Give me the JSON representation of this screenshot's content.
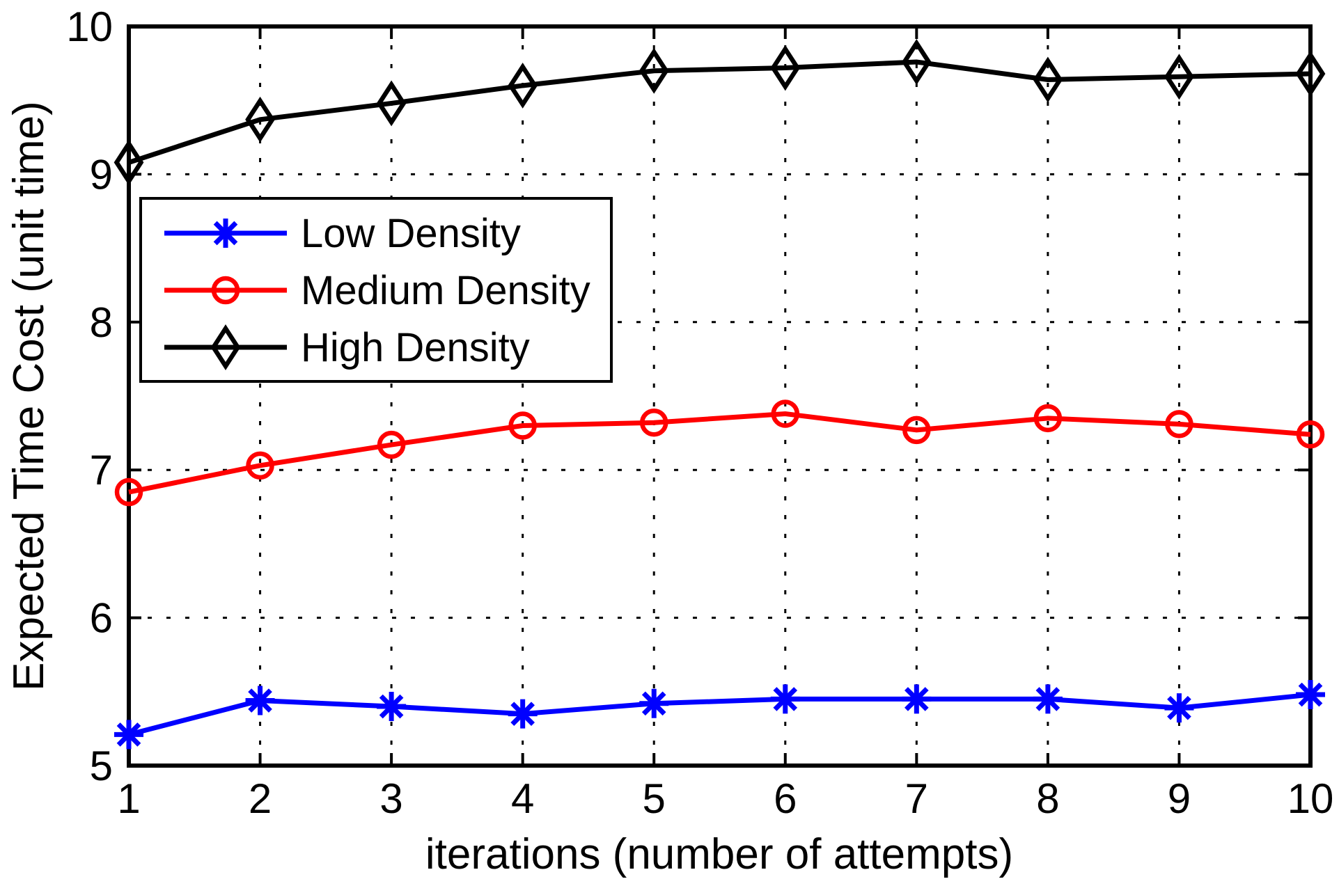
{
  "chart_data": {
    "type": "line",
    "title": "",
    "xlabel": "iterations (number of attempts)",
    "ylabel": "Expected Time Cost (unit time)",
    "x": [
      1,
      2,
      3,
      4,
      5,
      6,
      7,
      8,
      9,
      10
    ],
    "xlim": [
      1,
      10
    ],
    "ylim": [
      5,
      10
    ],
    "x_ticks": [
      1,
      2,
      3,
      4,
      5,
      6,
      7,
      8,
      9,
      10
    ],
    "y_ticks": [
      5,
      6,
      7,
      8,
      9,
      10
    ],
    "grid": "dotted",
    "legend_position": "upper-left",
    "background_color": "#ffffff",
    "axis_color": "#000000",
    "series": [
      {
        "name": "Low Density",
        "color": "#0000ff",
        "marker": "asterisk",
        "values": [
          5.21,
          5.44,
          5.4,
          5.35,
          5.42,
          5.45,
          5.45,
          5.45,
          5.39,
          5.48
        ]
      },
      {
        "name": "Medium Density",
        "color": "#ff0000",
        "marker": "circle",
        "values": [
          6.85,
          7.03,
          7.17,
          7.3,
          7.32,
          7.38,
          7.27,
          7.35,
          7.31,
          7.24
        ]
      },
      {
        "name": "High Density",
        "color": "#000000",
        "marker": "diamond",
        "values": [
          9.08,
          9.37,
          9.48,
          9.6,
          9.7,
          9.72,
          9.76,
          9.64,
          9.66,
          9.68
        ]
      }
    ]
  }
}
